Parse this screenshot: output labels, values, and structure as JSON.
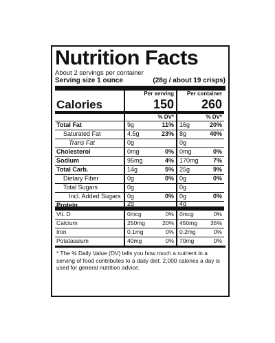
{
  "title": "Nutrition Facts",
  "servings_per_container": "About 2 servings per container",
  "serving_size_label": "Serving size 1 ounce",
  "serving_size_value": "(28g / about 19 crisps)",
  "col_headers": [
    "Per serving",
    "Per container"
  ],
  "calories": {
    "label": "Calories",
    "per_serving": "150",
    "per_container": "260"
  },
  "dv_header": "% DV*",
  "nutrients": [
    {
      "label": "Total Fat",
      "ps_amt": "9g",
      "ps_dv": "11%",
      "pc_amt": "16g",
      "pc_dv": "20%"
    },
    {
      "label": "Saturated Fat",
      "ps_amt": "4.5g",
      "ps_dv": "23%",
      "pc_amt": "8g",
      "pc_dv": "40%"
    },
    {
      "label": "Trans Fat",
      "ps_amt": "0g",
      "ps_dv": "",
      "pc_amt": "0g",
      "pc_dv": ""
    },
    {
      "label": "Cholesterol",
      "ps_amt": "0mg",
      "ps_dv": "0%",
      "pc_amt": "0mg",
      "pc_dv": "0%"
    },
    {
      "label": "Sodium",
      "ps_amt": "95mg",
      "ps_dv": "4%",
      "pc_amt": "170mg",
      "pc_dv": "7%"
    },
    {
      "label": "Total Carb.",
      "ps_amt": "14g",
      "ps_dv": "5%",
      "pc_amt": "25g",
      "pc_dv": "9%"
    },
    {
      "label": "Dietary Fiber",
      "ps_amt": "0g",
      "ps_dv": "0%",
      "pc_amt": "0g",
      "pc_dv": "0%"
    },
    {
      "label": "Total Sugars",
      "ps_amt": "0g",
      "ps_dv": "",
      "pc_amt": "0g",
      "pc_dv": ""
    },
    {
      "label": "Incl. Added Sugars",
      "ps_amt": "0g",
      "ps_dv": "0%",
      "pc_amt": "0g",
      "pc_dv": "0%"
    },
    {
      "label": "Protein",
      "ps_amt": "2g",
      "ps_dv": "",
      "pc_amt": "4g",
      "pc_dv": ""
    }
  ],
  "micronutrients": [
    {
      "label": "Vit. D",
      "ps_amt": "0mcg",
      "ps_dv": "0%",
      "pc_amt": "0mcg",
      "pc_dv": "0%"
    },
    {
      "label": "Calcium",
      "ps_amt": "250mg",
      "ps_dv": "20%",
      "pc_amt": "450mg",
      "pc_dv": "35%"
    },
    {
      "label": "Iron",
      "ps_amt": "0.1mg",
      "ps_dv": "0%",
      "pc_amt": "0.2mg",
      "pc_dv": "0%"
    },
    {
      "label": "Potatassium",
      "ps_amt": "40mg",
      "ps_dv": "0%",
      "pc_amt": "70mg",
      "pc_dv": "0%"
    }
  ],
  "footnote": "* The % Daily Value (DV) tells you how much a nutrient in a serving of food contributes to a daily diet. 2,000 calories a day is used for general nutrition advice."
}
